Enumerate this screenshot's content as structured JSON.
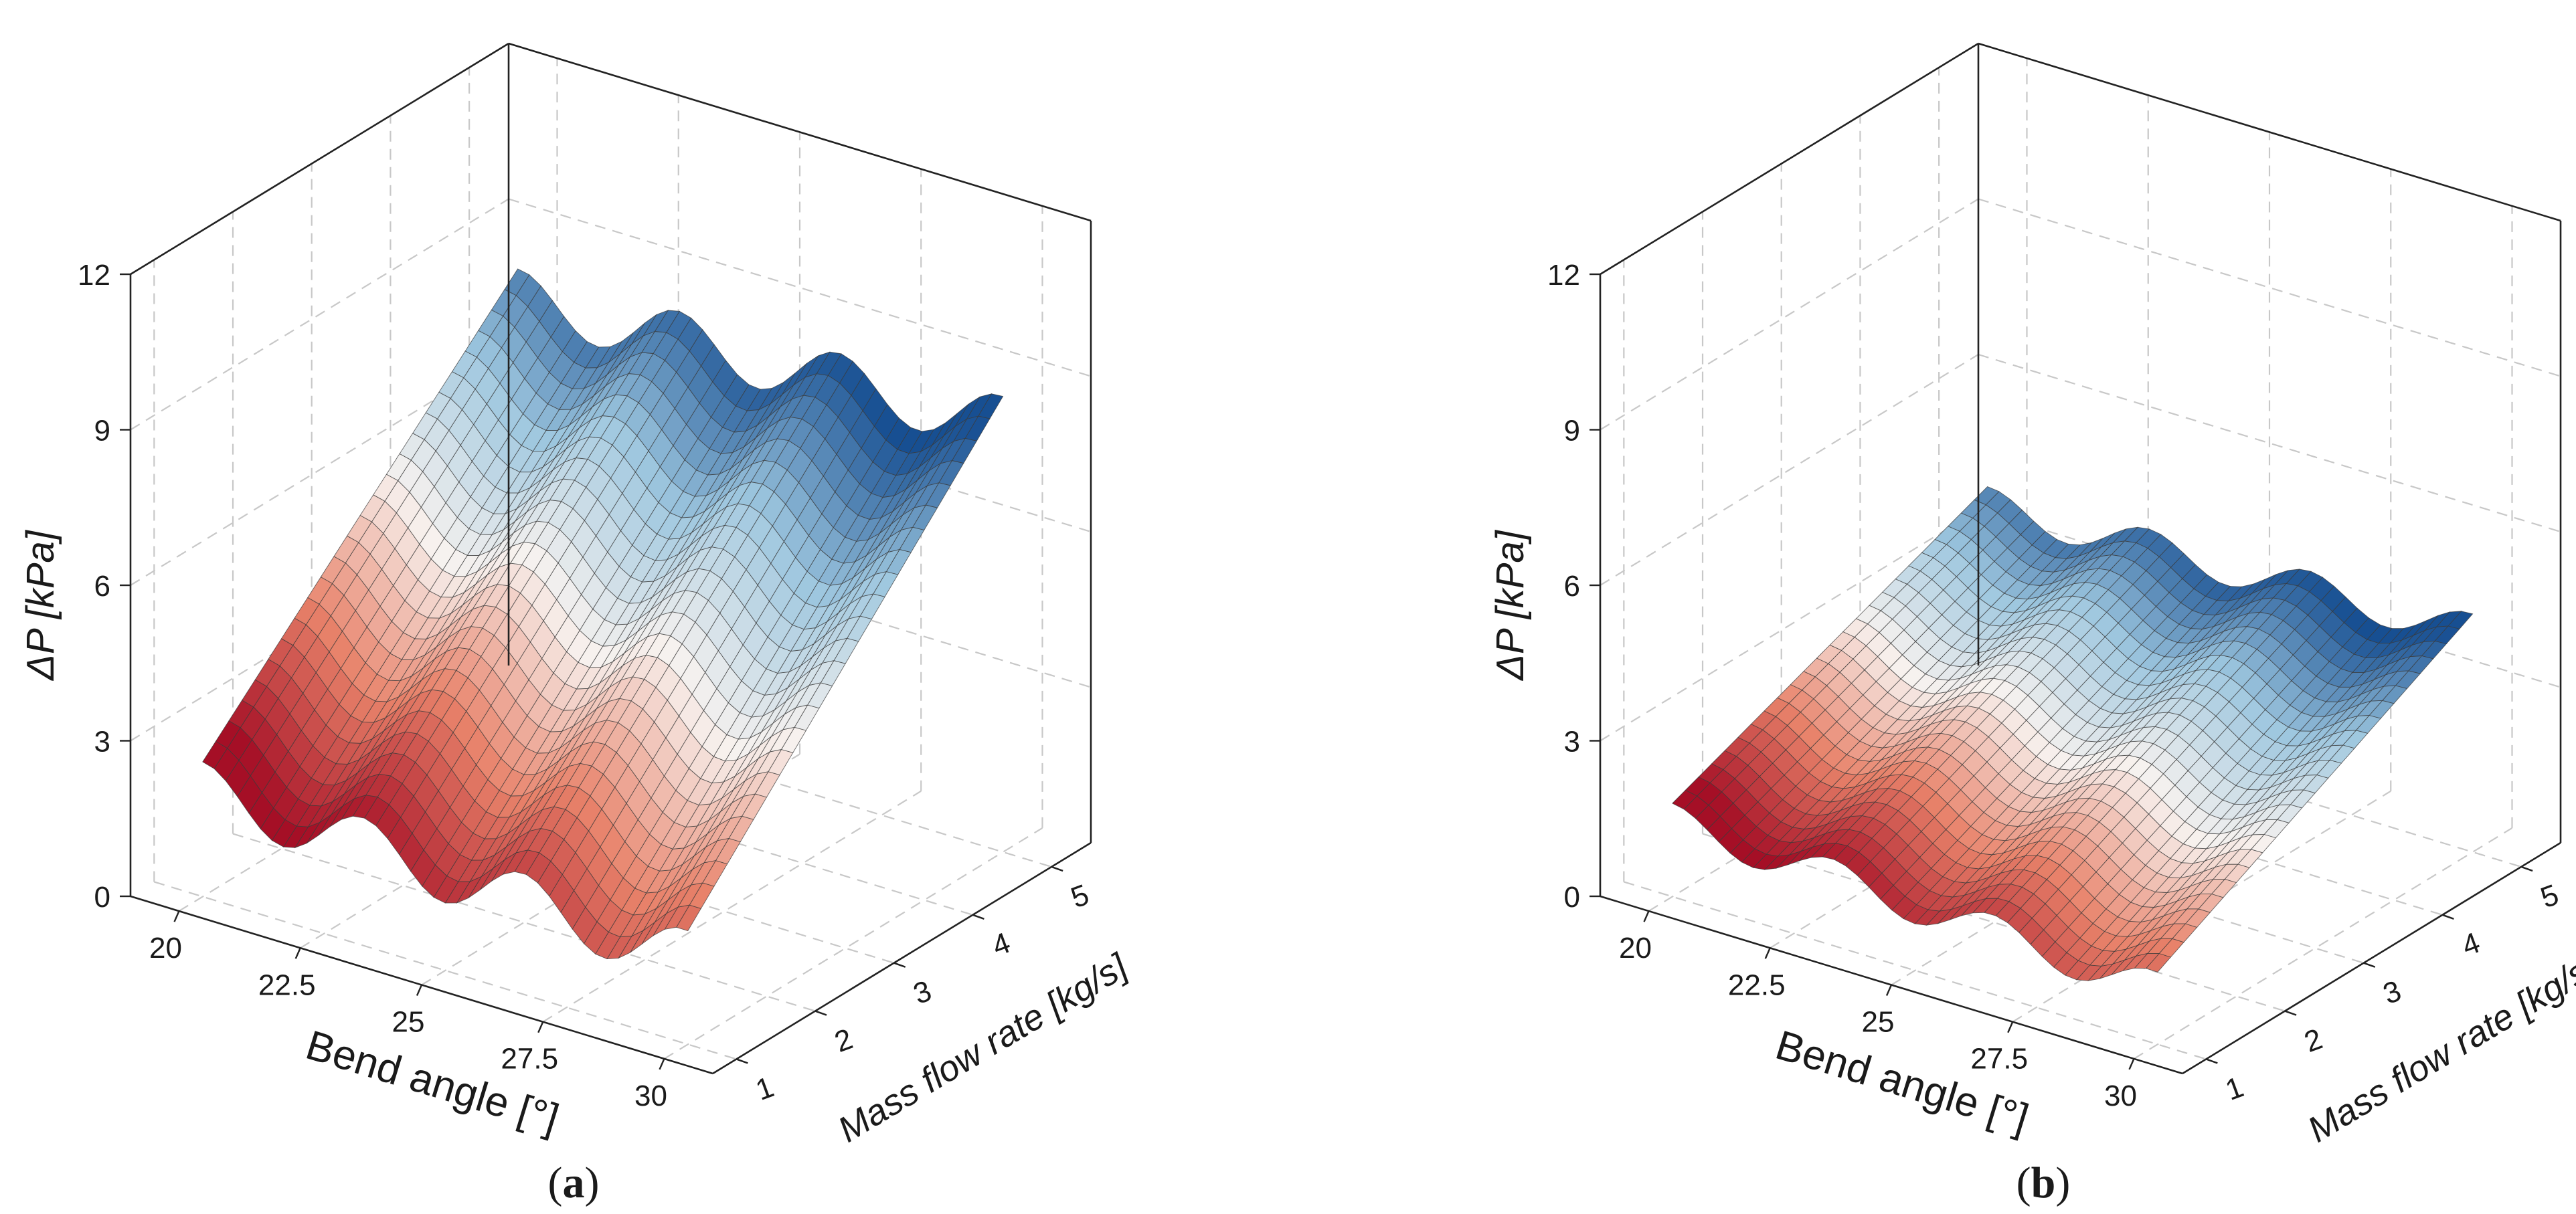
{
  "chart_data": [
    {
      "type": "surface3d",
      "panel_label": {
        "open": "(",
        "letter": "a",
        "close": ")"
      },
      "xlabel": "Bend angle [°]",
      "ylabel": "Mass flow rate [kg/s]",
      "zlabel": "ΔP [kPa]",
      "x_ticks": [
        "20",
        "22.5",
        "25",
        "27.5",
        "30"
      ],
      "y_ticks": [
        "1",
        "2",
        "3",
        "4",
        "5"
      ],
      "z_ticks": [
        "0",
        "3",
        "6",
        "9",
        "12"
      ],
      "xlim": [
        19,
        31
      ],
      "ylim": [
        0.7,
        5.5
      ],
      "zlim": [
        0,
        12
      ],
      "grid": true,
      "colormap": [
        "#a50f26",
        "#e8826a",
        "#f7f2ef",
        "#9ec7df",
        "#174f92"
      ],
      "surface_model": {
        "bend_angle": [
          20,
          30
        ],
        "mass_flow_rate": [
          1,
          5
        ],
        "base_kPa": 2.6,
        "flow_slope_kPa": 1.45,
        "wave_amplitude_kPa": 1.1,
        "wave_period_deg": 3.3
      },
      "corner_values_kPa": {
        "angle20_flow1": 2.6,
        "angle30_flow1": 2.2,
        "angle20_flow5": 8.2,
        "angle30_flow5": 8.6
      }
    },
    {
      "type": "surface3d",
      "panel_label": {
        "open": "(",
        "letter": "b",
        "close": ")"
      },
      "xlabel": "Bend angle [°]",
      "ylabel": "Mass flow rate [kg/s]",
      "zlabel": "ΔP [kPa]",
      "x_ticks": [
        "20",
        "22.5",
        "25",
        "27.5",
        "30"
      ],
      "y_ticks": [
        "1",
        "2",
        "3",
        "4",
        "5"
      ],
      "z_ticks": [
        "0",
        "3",
        "6",
        "9",
        "12"
      ],
      "xlim": [
        19,
        31
      ],
      "ylim": [
        0.7,
        5.5
      ],
      "zlim": [
        0,
        12
      ],
      "grid": true,
      "colormap": [
        "#a50f26",
        "#e8826a",
        "#f7f2ef",
        "#9ec7df",
        "#174f92"
      ],
      "surface_model": {
        "bend_angle": [
          20,
          30
        ],
        "mass_flow_rate": [
          1,
          5
        ],
        "base_kPa": 1.8,
        "flow_slope_kPa": 0.6,
        "wave_amplitude_kPa": 0.7,
        "wave_period_deg": 3.3
      },
      "corner_values_kPa": {
        "angle20_flow1": 1.8,
        "angle30_flow1": 1.4,
        "angle20_flow5": 4.2,
        "angle30_flow5": 4.6
      }
    }
  ]
}
